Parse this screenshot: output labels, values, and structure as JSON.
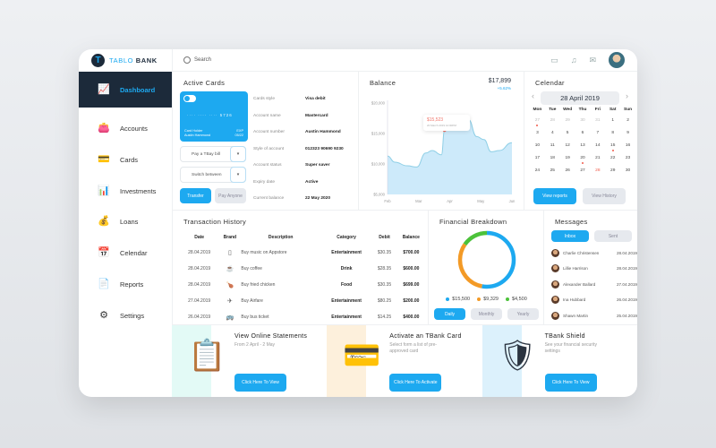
{
  "brand": {
    "name_part1": "TABLO",
    "name_part2": "BANK",
    "logo_letter": "T"
  },
  "header": {
    "search_placeholder": "Search",
    "icons": [
      "chat-icon",
      "bell-icon",
      "mail-icon"
    ]
  },
  "sidebar": {
    "items": [
      {
        "label": "Dashboard",
        "icon": "presentation-icon",
        "active": true
      },
      {
        "label": "Accounts",
        "icon": "wallet-icon"
      },
      {
        "label": "Cards",
        "icon": "card-icon"
      },
      {
        "label": "Investments",
        "icon": "growth-icon"
      },
      {
        "label": "Loans",
        "icon": "coins-icon"
      },
      {
        "label": "Celendar",
        "icon": "calendar-icon"
      },
      {
        "label": "Reports",
        "icon": "report-icon"
      },
      {
        "label": "Settings",
        "icon": "gear-icon"
      }
    ]
  },
  "active_cards": {
    "title": "Active Cards",
    "card": {
      "number": "···· ···· ···· 5726",
      "holder_label": "Card Holder",
      "holder": "Austin Hammond",
      "exp_label": "EXP",
      "exp": "05/22"
    },
    "pay_select": "Pay a TBay bill",
    "switch_select": "Switch between",
    "transfer": "Transfer",
    "pay_anyone": "Pay Anyone",
    "details": [
      {
        "label": "Cards style",
        "value": "Visa debit"
      },
      {
        "label": "Account name",
        "value": "Mastercard"
      },
      {
        "label": "Account number",
        "value": "Austin Hammond"
      },
      {
        "label": "Style of account",
        "value": "012323 90690 9230"
      },
      {
        "label": "Account status",
        "value": "Super saver"
      },
      {
        "label": "Expiry date",
        "value": "Active"
      },
      {
        "label": "Current balance",
        "value": "22 May 2020"
      }
    ]
  },
  "balance": {
    "title": "Balance",
    "amount": "$17,899",
    "change": "+5.62%",
    "tooltip_value": "$15,523",
    "tooltip_date": "20 March 2019 12:00PM"
  },
  "chart_data": {
    "type": "area",
    "ylim": [
      5000,
      20000
    ],
    "yticks": [
      "$5,000",
      "$10,000",
      "$15,000",
      "$20,000"
    ],
    "xticks": [
      "Feb",
      "Mar",
      "Apr",
      "May",
      "Jun"
    ],
    "x": [
      "2019-02-01",
      "2019-02-08",
      "2019-02-20",
      "2019-03-01",
      "2019-03-10",
      "2019-03-16",
      "2019-03-25",
      "2019-03-28",
      "2019-04-20",
      "2019-04-28",
      "2019-05-05",
      "2019-05-12",
      "2019-05-20",
      "2019-06-01"
    ],
    "values": [
      11300,
      10300,
      9700,
      9500,
      11800,
      12200,
      11500,
      15523,
      17300,
      14500,
      14000,
      12000,
      12200,
      13500
    ],
    "color": "#8ecfe6",
    "fill": "#cdeafa",
    "highlight_index": 7
  },
  "calendar": {
    "title": "Celendar",
    "current": "28 April 2019",
    "dows": [
      "Mon",
      "Tue",
      "Wed",
      "Thu",
      "Fri",
      "Sat",
      "Sun"
    ],
    "days": [
      {
        "d": "27",
        "m": 1,
        "dot": 1
      },
      {
        "d": "28",
        "m": 1
      },
      {
        "d": "29",
        "m": 1
      },
      {
        "d": "30",
        "m": 1
      },
      {
        "d": "31",
        "m": 1
      },
      {
        "d": "1"
      },
      {
        "d": "2"
      },
      {
        "d": "3"
      },
      {
        "d": "4"
      },
      {
        "d": "5"
      },
      {
        "d": "6"
      },
      {
        "d": "7"
      },
      {
        "d": "8"
      },
      {
        "d": "9"
      },
      {
        "d": "10"
      },
      {
        "d": "11"
      },
      {
        "d": "12"
      },
      {
        "d": "13"
      },
      {
        "d": "14"
      },
      {
        "d": "15",
        "dot": 1
      },
      {
        "d": "16"
      },
      {
        "d": "17"
      },
      {
        "d": "18"
      },
      {
        "d": "19"
      },
      {
        "d": "20",
        "dot": 1
      },
      {
        "d": "21"
      },
      {
        "d": "22"
      },
      {
        "d": "23"
      },
      {
        "d": "24"
      },
      {
        "d": "25"
      },
      {
        "d": "26"
      },
      {
        "d": "27"
      },
      {
        "d": "28",
        "today": 1
      },
      {
        "d": "29"
      },
      {
        "d": "30"
      }
    ],
    "view_reports": "View reports",
    "view_history": "View History"
  },
  "transactions": {
    "title": "Transaction History",
    "headers": [
      "Date",
      "Brand",
      "Description",
      "Category",
      "Debit",
      "Balance"
    ],
    "rows": [
      {
        "date": "28.04.2019",
        "icon": "phone-icon",
        "glyph": "▯",
        "desc": "Buy music on Appstore",
        "cat": "Entertainment",
        "debit": "$30.35",
        "bal": "$700.00"
      },
      {
        "date": "28.04.2019",
        "icon": "coffee-icon",
        "glyph": "☕",
        "desc": "Buy coffee",
        "cat": "Drink",
        "debit": "$28.35",
        "bal": "$600.00"
      },
      {
        "date": "28.04.2019",
        "icon": "chicken-icon",
        "glyph": "🍗",
        "desc": "Buy fried chicken",
        "cat": "Food",
        "debit": "$30.35",
        "bal": "$699.00"
      },
      {
        "date": "27.04.2019",
        "icon": "plane-icon",
        "glyph": "✈",
        "desc": "Buy Airfare",
        "cat": "Entertainment",
        "debit": "$80.25",
        "bal": "$200.00"
      },
      {
        "date": "26.04.2019",
        "icon": "bus-icon",
        "glyph": "🚌",
        "desc": "Buy bus ticket",
        "cat": "Entertainment",
        "debit": "$14.25",
        "bal": "$400.00"
      }
    ]
  },
  "breakdown": {
    "title": "Financial Breakdown",
    "segments": [
      {
        "label": "$15,500",
        "value": 15500,
        "color": "#1da9f0"
      },
      {
        "label": "$9,329",
        "value": 9329,
        "color": "#f39a26"
      },
      {
        "label": "$4,500",
        "value": 4500,
        "color": "#4cc23a"
      }
    ],
    "tabs": [
      "Daily",
      "Monthly",
      "Yearly"
    ]
  },
  "messages": {
    "title": "Messages",
    "tabs": [
      "Inbox",
      "Sent"
    ],
    "items": [
      {
        "name": "Charlie Christensen",
        "date": "28.04.2019"
      },
      {
        "name": "Lillie Harrison",
        "date": "28.04.2019"
      },
      {
        "name": "Alexander Ballard",
        "date": "27.04.2019"
      },
      {
        "name": "Ina Hubbard",
        "date": "26.04.2019"
      },
      {
        "name": "Shawn Martin",
        "date": "25.04.2019"
      }
    ]
  },
  "promos": [
    {
      "title": "View Online Statements",
      "text": "From 2 April - 2 May",
      "button": "Click Here To View",
      "bg": "#e3faf6"
    },
    {
      "title": "Activate an TBank Card",
      "text": "Select form a list of pre-approved card",
      "button": "Click Here To Activate",
      "bg": "#fdf0dc"
    },
    {
      "title": "TBank Shield",
      "text": "See your financial security settings",
      "button": "Click Here To View",
      "bg": "#dcf1fc"
    }
  ]
}
